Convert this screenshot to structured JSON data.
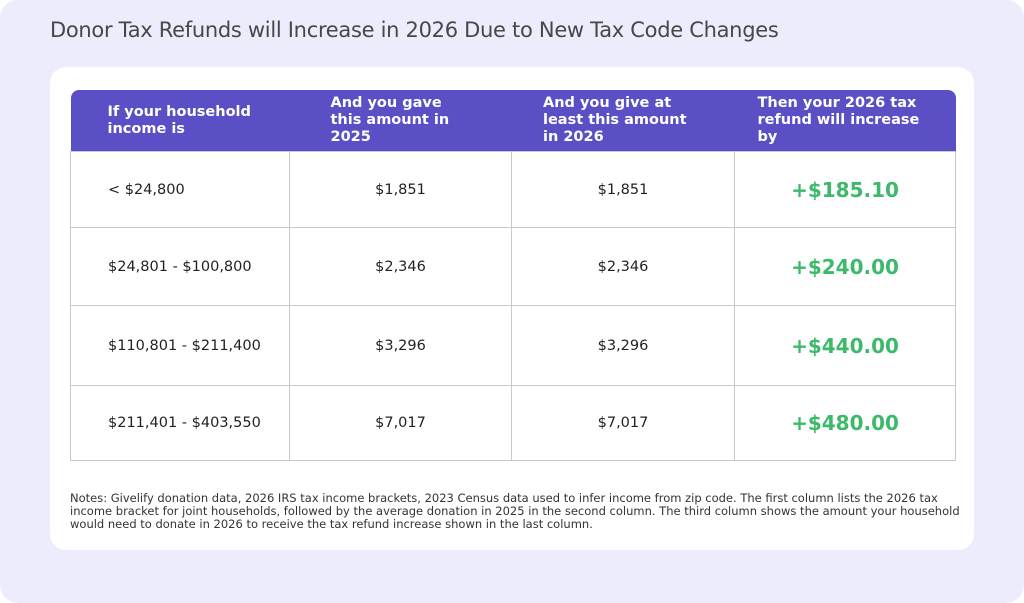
{
  "header": {
    "title": "Donor Tax Refunds will Increase in 2026 Due to New Tax Code Changes"
  },
  "table": {
    "columns": [
      "If your household income is",
      "And you gave this amount in 2025",
      "And you give at least this amount in 2026",
      "Then your 2026 tax refund will increase by"
    ],
    "rows": [
      [
        "< $24,800",
        "$1,851",
        "$1,851",
        "+$185.10"
      ],
      [
        "$24,801 - $100,800",
        "$2,346",
        "$2,346",
        "+$240.00"
      ],
      [
        "$110,801 - $211,400",
        "$3,296",
        "$3,296",
        "+$440.00"
      ],
      [
        "$211,401 - $403,550",
        "$7,017",
        "$7,017",
        "+$480.00"
      ]
    ]
  },
  "notes": "Notes: Givelify donation data, 2026 IRS tax income brackets, 2023 Census data used to infer income from zip code. The first column lists the 2026 tax income bracket for joint households, followed by the average donation in 2025 in the second column. The third column shows the amount your household would need to donate in 2026 to receive the tax refund increase shown in the last column."
}
